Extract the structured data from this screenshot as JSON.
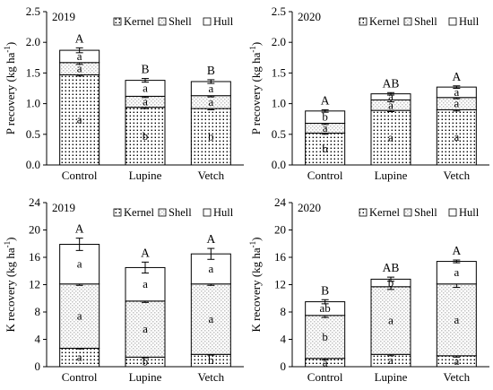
{
  "legend": [
    "Kernel",
    "Shell",
    "Hull"
  ],
  "chart_data": [
    {
      "type": "bar",
      "stacked": true,
      "panel_label": "2019",
      "ylabel": "P recovery (kg ha",
      "ylabel_sup": "-1",
      "categories": [
        "Control",
        "Lupine",
        "Vetch"
      ],
      "ylim": [
        0,
        2.5
      ],
      "yticks": [
        "0.0",
        "0.5",
        "1.0",
        "1.5",
        "2.0",
        "2.5"
      ],
      "series": [
        {
          "name": "Kernel",
          "values": [
            1.47,
            0.94,
            0.92
          ],
          "errors": [
            0.02,
            0.02,
            0.02
          ],
          "letters": [
            "a",
            "b",
            "b"
          ]
        },
        {
          "name": "Shell",
          "values": [
            0.2,
            0.18,
            0.21
          ],
          "errors": [
            0.03,
            0.02,
            0.02
          ],
          "letters": [
            "a",
            "a",
            "a"
          ]
        },
        {
          "name": "Hull",
          "values": [
            0.2,
            0.26,
            0.23
          ],
          "errors": [
            0.04,
            0.03,
            0.03
          ],
          "letters": [
            "a",
            "a",
            "a"
          ]
        }
      ],
      "total_letters": [
        "A",
        "B",
        "B"
      ],
      "legend_position": "top-right",
      "grid": false
    },
    {
      "type": "bar",
      "stacked": true,
      "panel_label": "2020",
      "ylabel": "P recovery (kg ha",
      "ylabel_sup": "-1",
      "categories": [
        "Control",
        "Lupine",
        "Vetch"
      ],
      "ylim": [
        0,
        2.5
      ],
      "yticks": [
        "0.0",
        "0.5",
        "1.0",
        "1.5",
        "2.0",
        "2.5"
      ],
      "series": [
        {
          "name": "Kernel",
          "values": [
            0.52,
            0.89,
            0.9
          ],
          "errors": [
            0.02,
            0.02,
            0.02
          ],
          "letters": [
            "b",
            "a",
            "a"
          ]
        },
        {
          "name": "Shell",
          "values": [
            0.16,
            0.17,
            0.2
          ],
          "errors": [
            0.02,
            0.03,
            0.02
          ],
          "letters": [
            "a",
            "a",
            "a"
          ]
        },
        {
          "name": "Hull",
          "values": [
            0.2,
            0.1,
            0.17
          ],
          "errors": [
            0.02,
            0.02,
            0.02
          ],
          "letters": [
            "b",
            "a",
            "a"
          ]
        }
      ],
      "total_letters": [
        "A",
        "AB",
        "A"
      ],
      "legend_position": "top-right",
      "grid": false
    },
    {
      "type": "bar",
      "stacked": true,
      "panel_label": "2019",
      "ylabel": "K recovery (kg ha",
      "ylabel_sup": "-1",
      "categories": [
        "Control",
        "Lupine",
        "Vetch"
      ],
      "ylim": [
        0,
        24
      ],
      "yticks": [
        "0",
        "4",
        "8",
        "12",
        "16",
        "20",
        "24"
      ],
      "series": [
        {
          "name": "Kernel",
          "values": [
            2.7,
            1.4,
            1.8
          ],
          "errors": [
            0.1,
            0.1,
            0.1
          ],
          "letters": [
            "a",
            "b",
            "b"
          ]
        },
        {
          "name": "Shell",
          "values": [
            9.4,
            8.2,
            10.3
          ],
          "errors": [
            0.2,
            0.2,
            0.2
          ],
          "letters": [
            "a",
            "a",
            "a"
          ]
        },
        {
          "name": "Hull",
          "values": [
            5.8,
            4.9,
            4.4
          ],
          "errors": [
            0.9,
            0.8,
            0.8
          ],
          "letters": [
            "a",
            "a",
            "a"
          ]
        }
      ],
      "total_letters": [
        "A",
        "A",
        "A"
      ],
      "legend_position": "top-right",
      "grid": false
    },
    {
      "type": "bar",
      "stacked": true,
      "panel_label": "2020",
      "ylabel": "K recovery (kg ha",
      "ylabel_sup": "-1",
      "categories": [
        "Control",
        "Lupine",
        "Vetch"
      ],
      "ylim": [
        0,
        24
      ],
      "yticks": [
        "0",
        "4",
        "8",
        "12",
        "16",
        "20",
        "24"
      ],
      "series": [
        {
          "name": "Kernel",
          "values": [
            1.2,
            1.8,
            1.6
          ],
          "errors": [
            0.2,
            0.2,
            0.2
          ],
          "letters": [
            "a",
            "a",
            "a"
          ]
        },
        {
          "name": "Shell",
          "values": [
            6.3,
            9.9,
            10.5
          ],
          "errors": [
            0.3,
            0.4,
            0.5
          ],
          "letters": [
            "b",
            "a",
            "a"
          ]
        },
        {
          "name": "Hull",
          "values": [
            2.0,
            1.1,
            3.3
          ],
          "errors": [
            0.3,
            0.3,
            0.2
          ],
          "letters": [
            "ab",
            "b",
            "a"
          ]
        }
      ],
      "total_letters": [
        "B",
        "AB",
        "A"
      ],
      "legend_position": "top-right",
      "grid": false
    }
  ]
}
